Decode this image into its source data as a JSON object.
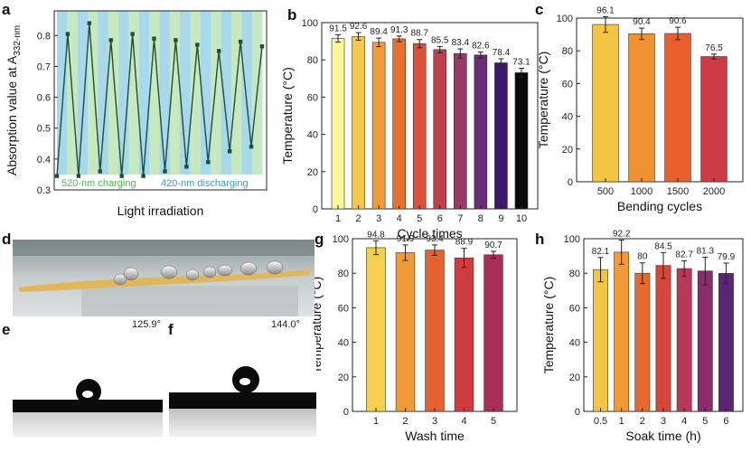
{
  "panels": {
    "a": "a",
    "b": "b",
    "c": "c",
    "d": "d",
    "e": "e",
    "f": "f",
    "g": "g",
    "h": "h"
  },
  "photos": {
    "angle_e": "125.9°",
    "angle_f": "144.0°"
  },
  "colors": {
    "band_green": "#c8e8c0",
    "band_blue": "#a8d8ec",
    "line_a": "#1e4f3a",
    "charging_text": "#3ec43e",
    "discharging_text": "#2aa3d6",
    "photo_fabric": "#e1b75b"
  },
  "chart_data": [
    {
      "id": "a",
      "type": "line",
      "ylabel_main": "Absorption value at A",
      "ylabel_sub": "332-nm",
      "xlabel": "Light irradiation",
      "ylim": [
        0.3,
        0.88
      ],
      "yticks": [
        0.3,
        0.4,
        0.5,
        0.6,
        0.7,
        0.8
      ],
      "y": [
        0.345,
        0.805,
        0.345,
        0.84,
        0.36,
        0.785,
        0.345,
        0.805,
        0.345,
        0.79,
        0.36,
        0.785,
        0.375,
        0.77,
        0.39,
        0.75,
        0.425,
        0.78,
        0.44,
        0.765
      ],
      "annotations": {
        "charging": "520-nm charging",
        "discharging": "420-nm discharging"
      }
    },
    {
      "id": "b",
      "type": "bar",
      "xlabel": "Cycle times",
      "ylabel": "Temperature (°C)",
      "ylim": [
        0,
        100
      ],
      "yticks": [
        0,
        20,
        40,
        60,
        80,
        100
      ],
      "categories": [
        "1",
        "2",
        "3",
        "4",
        "5",
        "6",
        "7",
        "8",
        "9",
        "10"
      ],
      "values": [
        91.5,
        92.6,
        89.4,
        91.3,
        88.7,
        85.5,
        83.4,
        82.6,
        78.4,
        73.1
      ],
      "errors": [
        2,
        2,
        2.3,
        1.5,
        2.2,
        1.7,
        2.5,
        1.6,
        2.2,
        2.4
      ],
      "colors": [
        "#fbf79a",
        "#f6c94d",
        "#f19b3a",
        "#e8702c",
        "#d8533c",
        "#bf3f4f",
        "#973a66",
        "#6b2c77",
        "#3f1a6b",
        "#0a0a0a"
      ]
    },
    {
      "id": "c",
      "type": "bar",
      "xlabel": "Bending cycles",
      "ylabel": "Temperature (°C)",
      "ylim": [
        0,
        100
      ],
      "yticks": [
        0,
        20,
        40,
        60,
        80,
        100
      ],
      "categories": [
        "500",
        "1000",
        "1500",
        "2000"
      ],
      "values": [
        96.1,
        90.4,
        90.6,
        76.5
      ],
      "errors": [
        4.8,
        3.5,
        3.8,
        1.5
      ],
      "colors": [
        "#f4c542",
        "#f19232",
        "#e7602d",
        "#cd3c44"
      ]
    },
    {
      "id": "g",
      "type": "bar",
      "xlabel": "Wash time",
      "ylabel": "Temperature (°C)",
      "ylim": [
        0,
        100
      ],
      "yticks": [
        0,
        20,
        40,
        60,
        80,
        100
      ],
      "categories": [
        "1",
        "2",
        "3",
        "4",
        "5"
      ],
      "values": [
        94.8,
        91.9,
        93.4,
        88.9,
        90.7
      ],
      "errors": [
        4,
        4.5,
        3,
        5.5,
        2
      ],
      "colors": [
        "#f4d04e",
        "#f09a38",
        "#e46230",
        "#cf3c3f",
        "#a72f58"
      ]
    },
    {
      "id": "h",
      "type": "bar",
      "xlabel": "Soak time (h)",
      "ylabel": "Temperature (°C)",
      "ylim": [
        0,
        100
      ],
      "yticks": [
        0,
        20,
        40,
        60,
        80,
        100
      ],
      "categories": [
        "0.5",
        "1",
        "2",
        "3",
        "4",
        "5",
        "6"
      ],
      "values": [
        82.1,
        92.2,
        80,
        84.5,
        82.7,
        81.3,
        79.9
      ],
      "errors": [
        7,
        7,
        6,
        7.5,
        4.5,
        8,
        6
      ],
      "colors": [
        "#f4c542",
        "#f29a38",
        "#e8692e",
        "#d7463a",
        "#b8385a",
        "#8a2d6a",
        "#5a2573"
      ]
    }
  ]
}
